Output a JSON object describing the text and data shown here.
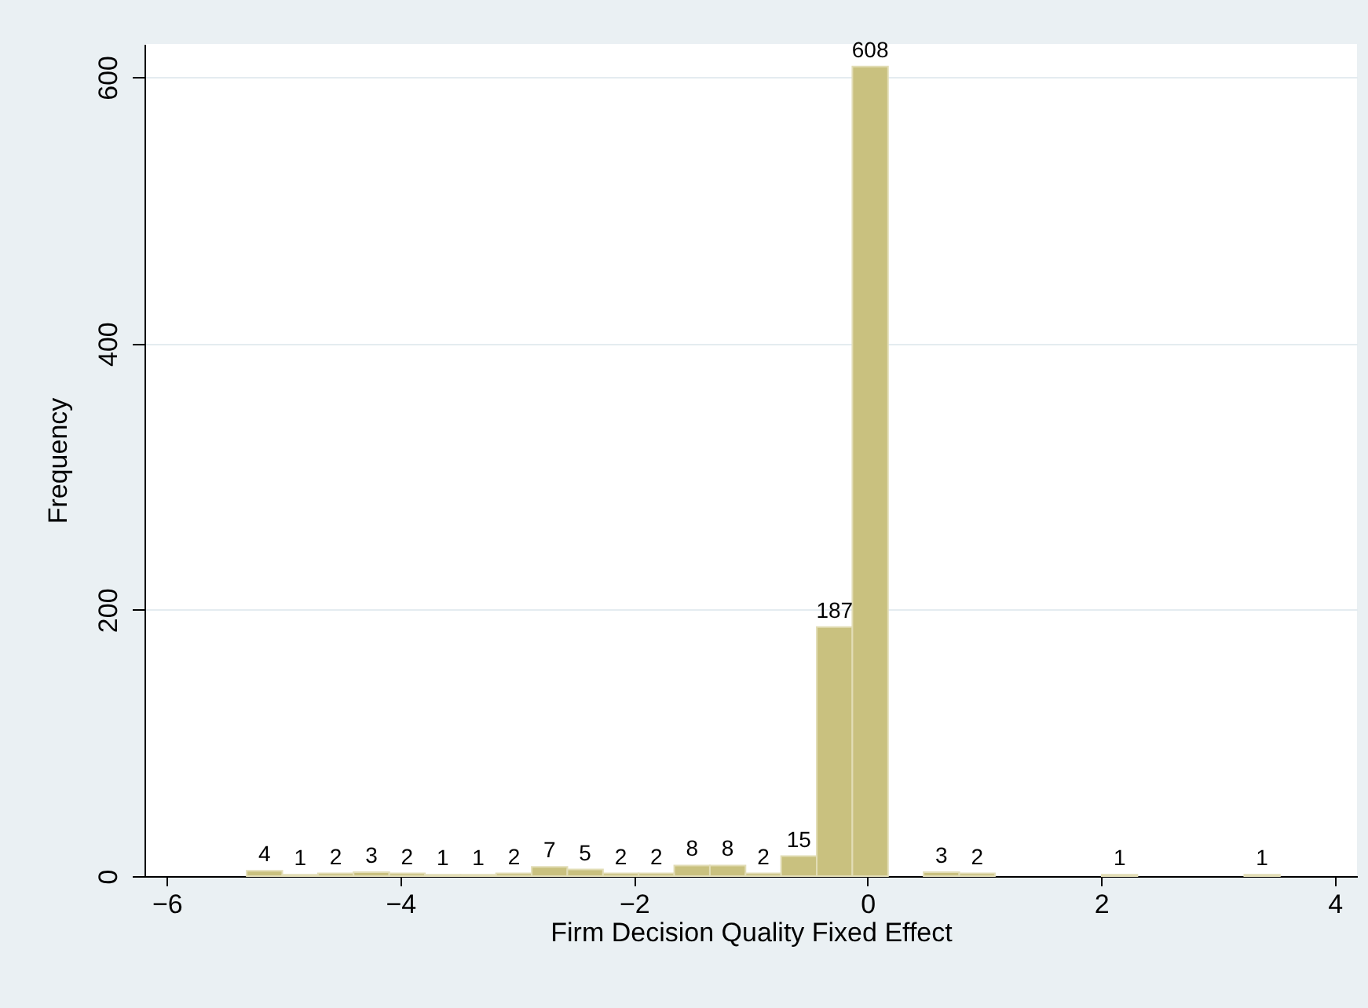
{
  "chart_data": {
    "type": "histogram",
    "xlabel": "Firm Decision Quality Fixed Effect",
    "ylabel": "Frequency",
    "bins": [
      -5.315,
      -5.01,
      -4.705,
      -4.4,
      -4.095,
      -3.79,
      -3.485,
      -3.18,
      -2.875,
      -2.57,
      -2.265,
      -1.96,
      -1.655,
      -1.35,
      -1.045,
      -0.74,
      -0.435,
      -0.13,
      0.175,
      0.48,
      0.785,
      1.09,
      1.395,
      1.7,
      2.005,
      2.31,
      2.615,
      2.92,
      3.225,
      3.53
    ],
    "values": [
      4,
      1,
      2,
      3,
      2,
      1,
      1,
      2,
      7,
      5,
      2,
      2,
      8,
      8,
      2,
      15,
      187,
      608,
      0,
      3,
      2,
      0,
      0,
      0,
      1,
      0,
      0,
      0,
      1
    ],
    "value_labels": [
      "4",
      "1",
      "2",
      "3",
      "2",
      "1",
      "1",
      "2",
      "7",
      "5",
      "2",
      "2",
      "8",
      "8",
      "2",
      "15",
      "187",
      "608",
      null,
      "3",
      "2",
      null,
      null,
      null,
      "1",
      null,
      null,
      null,
      "1"
    ],
    "color": "#c9c17f",
    "xlim": [
      -6.19,
      4.19
    ],
    "ylim": [
      0,
      625
    ],
    "xticks": [
      -6,
      -4,
      -2,
      0,
      2,
      4
    ],
    "yticks": [
      0,
      200,
      400,
      600
    ],
    "grid": "y"
  }
}
